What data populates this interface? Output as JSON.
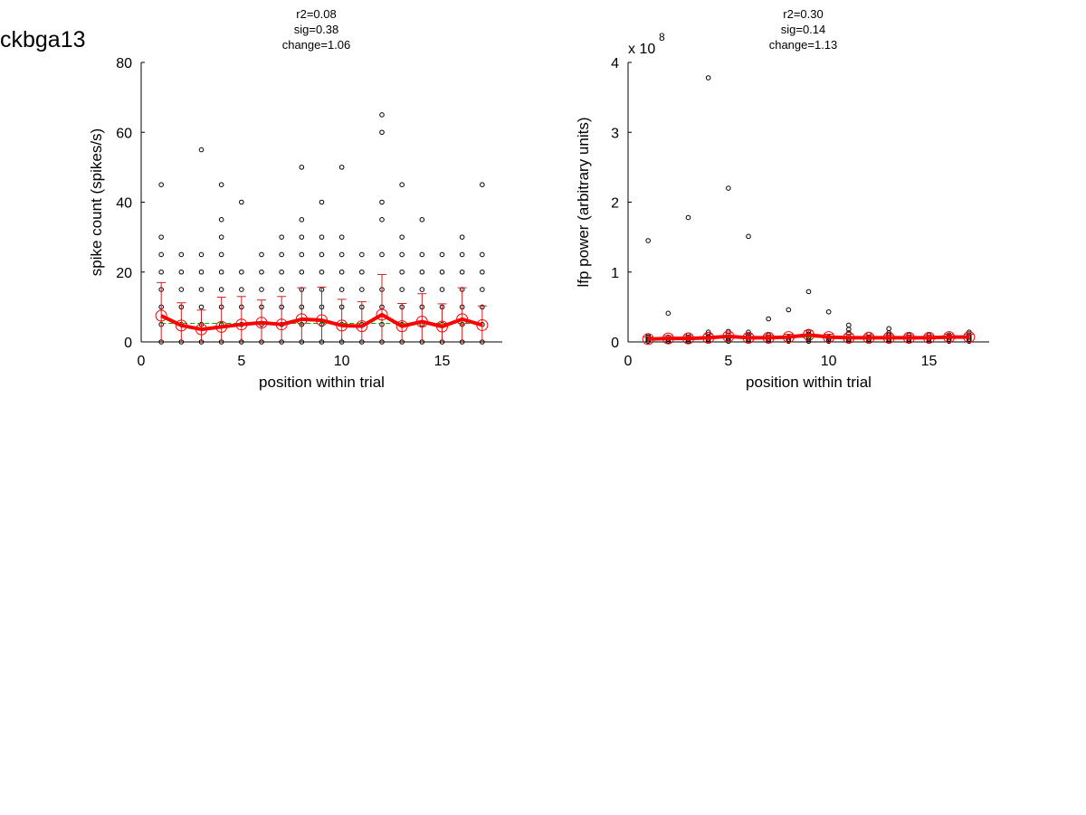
{
  "page_title": "ckbga13",
  "colors": {
    "axis": "#000000",
    "points": "#000000",
    "mean": "#ff0000",
    "errorbar": "#cc2222",
    "fit": "#00aa00",
    "background": "#ffffff"
  },
  "chart_data": [
    {
      "type": "scatter",
      "stats": [
        "r2=0.08",
        "sig=0.38",
        "change=1.06"
      ],
      "xlabel": "position within trial",
      "ylabel": "spike count (spikes/s)",
      "exponent_label": "",
      "xlim": [
        0,
        18
      ],
      "ylim": [
        0,
        80
      ],
      "xticks": [
        0,
        5,
        10,
        15
      ],
      "yticks": [
        0,
        20,
        40,
        60,
        80
      ],
      "points": [
        [
          1,
          0
        ],
        [
          1,
          5
        ],
        [
          1,
          10
        ],
        [
          1,
          15
        ],
        [
          1,
          20
        ],
        [
          1,
          25
        ],
        [
          1,
          30
        ],
        [
          1,
          45
        ],
        [
          2,
          0
        ],
        [
          2,
          5
        ],
        [
          2,
          10
        ],
        [
          2,
          15
        ],
        [
          2,
          20
        ],
        [
          2,
          25
        ],
        [
          3,
          0
        ],
        [
          3,
          5
        ],
        [
          3,
          10
        ],
        [
          3,
          15
        ],
        [
          3,
          20
        ],
        [
          3,
          25
        ],
        [
          3,
          55
        ],
        [
          4,
          0
        ],
        [
          4,
          5
        ],
        [
          4,
          10
        ],
        [
          4,
          15
        ],
        [
          4,
          20
        ],
        [
          4,
          25
        ],
        [
          4,
          30
        ],
        [
          4,
          35
        ],
        [
          4,
          45
        ],
        [
          5,
          0
        ],
        [
          5,
          5
        ],
        [
          5,
          10
        ],
        [
          5,
          15
        ],
        [
          5,
          20
        ],
        [
          5,
          40
        ],
        [
          6,
          0
        ],
        [
          6,
          5
        ],
        [
          6,
          10
        ],
        [
          6,
          15
        ],
        [
          6,
          20
        ],
        [
          6,
          25
        ],
        [
          7,
          0
        ],
        [
          7,
          5
        ],
        [
          7,
          10
        ],
        [
          7,
          15
        ],
        [
          7,
          20
        ],
        [
          7,
          25
        ],
        [
          7,
          30
        ],
        [
          8,
          0
        ],
        [
          8,
          5
        ],
        [
          8,
          10
        ],
        [
          8,
          15
        ],
        [
          8,
          20
        ],
        [
          8,
          25
        ],
        [
          8,
          30
        ],
        [
          8,
          35
        ],
        [
          8,
          50
        ],
        [
          9,
          0
        ],
        [
          9,
          5
        ],
        [
          9,
          10
        ],
        [
          9,
          15
        ],
        [
          9,
          20
        ],
        [
          9,
          25
        ],
        [
          9,
          30
        ],
        [
          9,
          40
        ],
        [
          10,
          0
        ],
        [
          10,
          5
        ],
        [
          10,
          10
        ],
        [
          10,
          15
        ],
        [
          10,
          20
        ],
        [
          10,
          25
        ],
        [
          10,
          30
        ],
        [
          10,
          50
        ],
        [
          11,
          0
        ],
        [
          11,
          5
        ],
        [
          11,
          10
        ],
        [
          11,
          15
        ],
        [
          11,
          20
        ],
        [
          11,
          25
        ],
        [
          12,
          0
        ],
        [
          12,
          5
        ],
        [
          12,
          10
        ],
        [
          12,
          15
        ],
        [
          12,
          25
        ],
        [
          12,
          35
        ],
        [
          12,
          40
        ],
        [
          12,
          60
        ],
        [
          12,
          65
        ],
        [
          13,
          0
        ],
        [
          13,
          5
        ],
        [
          13,
          10
        ],
        [
          13,
          15
        ],
        [
          13,
          20
        ],
        [
          13,
          25
        ],
        [
          13,
          30
        ],
        [
          13,
          45
        ],
        [
          14,
          0
        ],
        [
          14,
          5
        ],
        [
          14,
          10
        ],
        [
          14,
          15
        ],
        [
          14,
          20
        ],
        [
          14,
          25
        ],
        [
          14,
          35
        ],
        [
          15,
          0
        ],
        [
          15,
          5
        ],
        [
          15,
          10
        ],
        [
          15,
          15
        ],
        [
          15,
          20
        ],
        [
          15,
          25
        ],
        [
          16,
          0
        ],
        [
          16,
          5
        ],
        [
          16,
          10
        ],
        [
          16,
          15
        ],
        [
          16,
          20
        ],
        [
          16,
          25
        ],
        [
          16,
          30
        ],
        [
          17,
          0
        ],
        [
          17,
          5
        ],
        [
          17,
          10
        ],
        [
          17,
          15
        ],
        [
          17,
          20
        ],
        [
          17,
          25
        ],
        [
          17,
          45
        ]
      ],
      "mean": [
        {
          "x": 1,
          "y": 7.5,
          "err": 9.5
        },
        {
          "x": 2,
          "y": 4.7,
          "err": 6.5
        },
        {
          "x": 3,
          "y": 3.6,
          "err": 5.5
        },
        {
          "x": 4,
          "y": 4.3,
          "err": 8.5
        },
        {
          "x": 5,
          "y": 5.0,
          "err": 8.0
        },
        {
          "x": 6,
          "y": 5.5,
          "err": 6.5
        },
        {
          "x": 7,
          "y": 5.0,
          "err": 8.0
        },
        {
          "x": 8,
          "y": 6.5,
          "err": 9.0
        },
        {
          "x": 9,
          "y": 6.2,
          "err": 9.5
        },
        {
          "x": 10,
          "y": 4.7,
          "err": 7.5
        },
        {
          "x": 11,
          "y": 4.5,
          "err": 7.0
        },
        {
          "x": 12,
          "y": 7.8,
          "err": 11.5
        },
        {
          "x": 13,
          "y": 4.5,
          "err": 6.5
        },
        {
          "x": 14,
          "y": 5.8,
          "err": 8.0
        },
        {
          "x": 15,
          "y": 4.4,
          "err": 6.5
        },
        {
          "x": 16,
          "y": 6.5,
          "err": 9.0
        },
        {
          "x": 17,
          "y": 4.8,
          "err": 5.5
        }
      ],
      "fit": [
        [
          1,
          5.3
        ],
        [
          17,
          5.3
        ]
      ]
    },
    {
      "type": "scatter",
      "stats": [
        "r2=0.30",
        "sig=0.14",
        "change=1.13"
      ],
      "xlabel": "position within trial",
      "ylabel": "lfp power (arbitrary units)",
      "exponent_label": "x 10",
      "exponent_power": "8",
      "xlim": [
        0,
        18
      ],
      "ylim": [
        0,
        4
      ],
      "xticks": [
        0,
        5,
        10,
        15
      ],
      "yticks": [
        0,
        1,
        2,
        3,
        4
      ],
      "points": [
        [
          1,
          0.01
        ],
        [
          1,
          0.03
        ],
        [
          1,
          0.05
        ],
        [
          1,
          0.07
        ],
        [
          1,
          0.09
        ],
        [
          1,
          1.45
        ],
        [
          2,
          0.01
        ],
        [
          2,
          0.04
        ],
        [
          2,
          0.07
        ],
        [
          2,
          0.41
        ],
        [
          3,
          0.01
        ],
        [
          3,
          0.04
        ],
        [
          3,
          0.07
        ],
        [
          3,
          0.1
        ],
        [
          3,
          1.78
        ],
        [
          4,
          0.01
        ],
        [
          4,
          0.04
        ],
        [
          4,
          0.07
        ],
        [
          4,
          0.11
        ],
        [
          4,
          0.14
        ],
        [
          4,
          3.78
        ],
        [
          5,
          0.01
        ],
        [
          5,
          0.04
        ],
        [
          5,
          0.07
        ],
        [
          5,
          0.1
        ],
        [
          5,
          0.15
        ],
        [
          5,
          2.2
        ],
        [
          6,
          0.01
        ],
        [
          6,
          0.04
        ],
        [
          6,
          0.07
        ],
        [
          6,
          0.1
        ],
        [
          6,
          0.14
        ],
        [
          6,
          1.51
        ],
        [
          7,
          0.01
        ],
        [
          7,
          0.04
        ],
        [
          7,
          0.07
        ],
        [
          7,
          0.1
        ],
        [
          7,
          0.33
        ],
        [
          8,
          0.01
        ],
        [
          8,
          0.04
        ],
        [
          8,
          0.07
        ],
        [
          8,
          0.46
        ],
        [
          9,
          0.01
        ],
        [
          9,
          0.04
        ],
        [
          9,
          0.07
        ],
        [
          9,
          0.11
        ],
        [
          9,
          0.15
        ],
        [
          9,
          0.72
        ],
        [
          10,
          0.01
        ],
        [
          10,
          0.04
        ],
        [
          10,
          0.07
        ],
        [
          10,
          0.43
        ],
        [
          11,
          0.01
        ],
        [
          11,
          0.04
        ],
        [
          11,
          0.08
        ],
        [
          11,
          0.13
        ],
        [
          11,
          0.18
        ],
        [
          11,
          0.24
        ],
        [
          12,
          0.01
        ],
        [
          12,
          0.04
        ],
        [
          12,
          0.07
        ],
        [
          12,
          0.11
        ],
        [
          13,
          0.01
        ],
        [
          13,
          0.04
        ],
        [
          13,
          0.07
        ],
        [
          13,
          0.1
        ],
        [
          13,
          0.13
        ],
        [
          13,
          0.19
        ],
        [
          14,
          0.01
        ],
        [
          14,
          0.04
        ],
        [
          14,
          0.07
        ],
        [
          14,
          0.1
        ],
        [
          15,
          0.01
        ],
        [
          15,
          0.04
        ],
        [
          15,
          0.07
        ],
        [
          15,
          0.1
        ],
        [
          16,
          0.01
        ],
        [
          16,
          0.04
        ],
        [
          16,
          0.07
        ],
        [
          16,
          0.1
        ],
        [
          17,
          0.01
        ],
        [
          17,
          0.04
        ],
        [
          17,
          0.07
        ],
        [
          17,
          0.1
        ],
        [
          17,
          0.14
        ]
      ],
      "mean": [
        {
          "x": 1,
          "y": 0.04,
          "err": 0.03
        },
        {
          "x": 2,
          "y": 0.05,
          "err": 0.04
        },
        {
          "x": 3,
          "y": 0.05,
          "err": 0.04
        },
        {
          "x": 4,
          "y": 0.06,
          "err": 0.05
        },
        {
          "x": 5,
          "y": 0.08,
          "err": 0.05
        },
        {
          "x": 6,
          "y": 0.06,
          "err": 0.05
        },
        {
          "x": 7,
          "y": 0.06,
          "err": 0.04
        },
        {
          "x": 8,
          "y": 0.07,
          "err": 0.04
        },
        {
          "x": 9,
          "y": 0.1,
          "err": 0.06
        },
        {
          "x": 10,
          "y": 0.07,
          "err": 0.04
        },
        {
          "x": 11,
          "y": 0.06,
          "err": 0.05
        },
        {
          "x": 12,
          "y": 0.06,
          "err": 0.04
        },
        {
          "x": 13,
          "y": 0.06,
          "err": 0.04
        },
        {
          "x": 14,
          "y": 0.06,
          "err": 0.04
        },
        {
          "x": 15,
          "y": 0.06,
          "err": 0.04
        },
        {
          "x": 16,
          "y": 0.07,
          "err": 0.04
        },
        {
          "x": 17,
          "y": 0.07,
          "err": 0.04
        }
      ],
      "fit": [
        [
          1,
          0.05
        ],
        [
          17,
          0.08
        ]
      ]
    }
  ]
}
